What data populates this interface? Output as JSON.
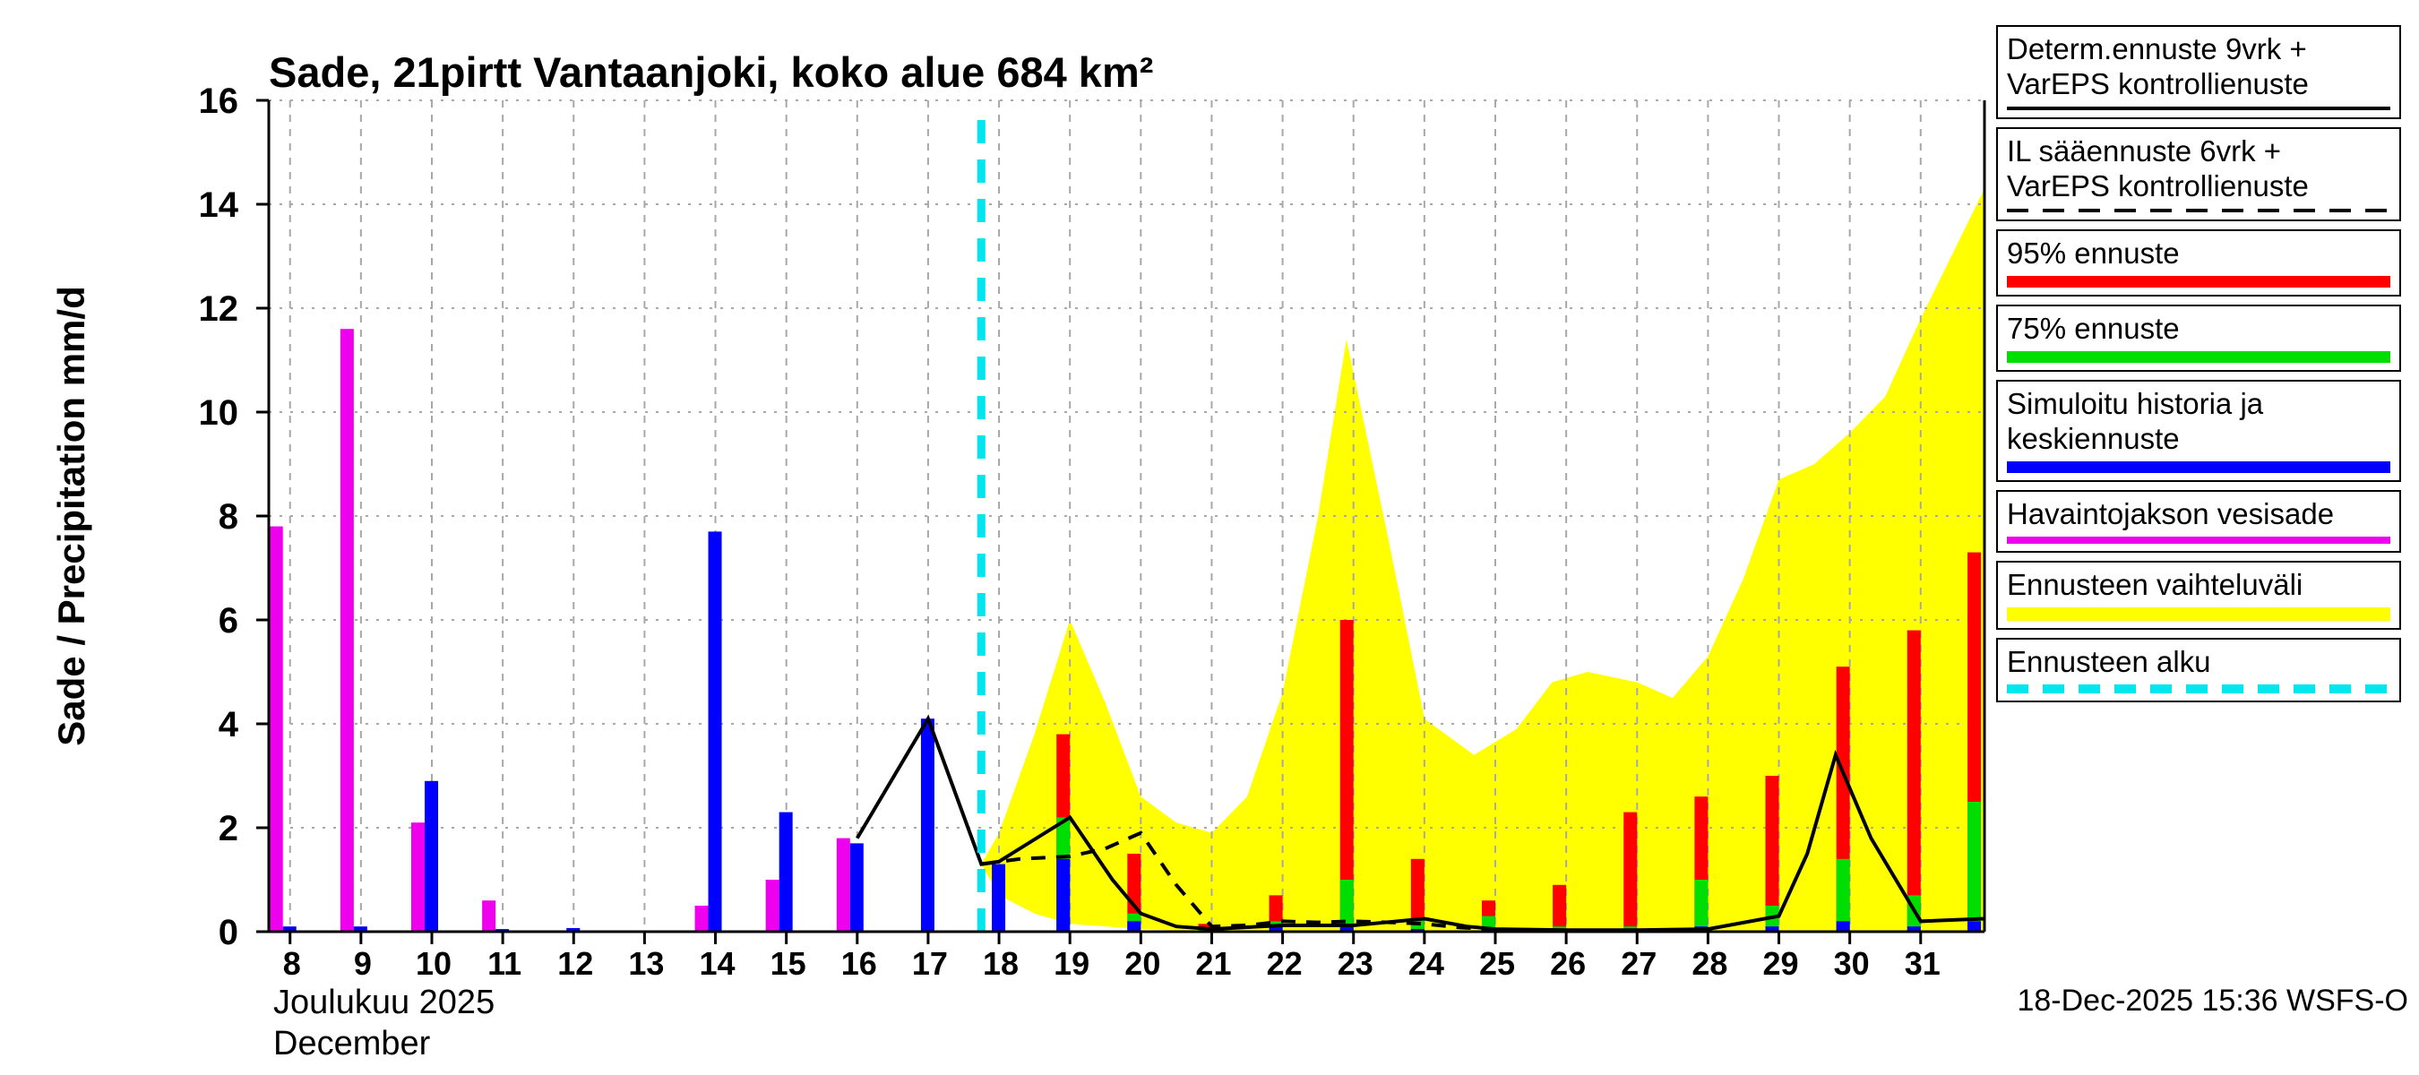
{
  "title": "Sade, 21pirtt Vantaanjoki, koko alue 684 km²",
  "footer": {
    "timestamp": "18-Dec-2025 15:36 WSFS-O"
  },
  "y_axis": {
    "label": "Sade / Precipitation  mm/d"
  },
  "x_axis": {
    "caption_fi": "Joulukuu 2025",
    "caption_en": "December"
  },
  "legend": {
    "items": [
      {
        "name": "determ-forecast",
        "lines": [
          "Determ.ennuste 9vrk +",
          "VarEPS kontrollienuste"
        ],
        "sample": {
          "color": "#000000",
          "thickness": 4,
          "dash": false
        }
      },
      {
        "name": "il-forecast",
        "lines": [
          "IL sääennuste 6vrk  +",
          "VarEPS kontrollienuste"
        ],
        "sample": {
          "color": "#000000",
          "thickness": 4,
          "dash": true
        }
      },
      {
        "name": "p95-forecast",
        "lines": [
          "95% ennuste"
        ],
        "sample": {
          "color": "#ff0000",
          "thickness": 13,
          "dash": false
        }
      },
      {
        "name": "p75-forecast",
        "lines": [
          "75% ennuste"
        ],
        "sample": {
          "color": "#00dd00",
          "thickness": 13,
          "dash": false
        }
      },
      {
        "name": "simulated-history",
        "lines": [
          "Simuloitu historia ja",
          "keskiennuste"
        ],
        "sample": {
          "color": "#0000ff",
          "thickness": 13,
          "dash": false
        }
      },
      {
        "name": "observed-precipitation",
        "lines": [
          "Havaintojakson vesisade"
        ],
        "sample": {
          "color": "#ee00ee",
          "thickness": 8,
          "dash": false
        }
      },
      {
        "name": "forecast-range",
        "lines": [
          "Ennusteen vaihteluväli"
        ],
        "sample": {
          "color": "#ffff00",
          "thickness": 15,
          "dash": false
        }
      },
      {
        "name": "forecast-start",
        "lines": [
          "Ennusteen alku"
        ],
        "sample": {
          "color": "#00e5ee",
          "thickness": 10,
          "dash": true
        }
      }
    ]
  },
  "chart_data": {
    "type": "bar+line+area",
    "title": "Sade, 21pirtt Vantaanjoki, koko alue 684 km²",
    "xlabel": "Joulukuu 2025 / December",
    "ylabel": "Sade / Precipitation mm/d",
    "x_range": [
      7.7,
      31.9
    ],
    "y_range": [
      0,
      16
    ],
    "x_ticks": [
      8,
      9,
      10,
      11,
      12,
      13,
      14,
      15,
      16,
      17,
      18,
      19,
      20,
      21,
      22,
      23,
      24,
      25,
      26,
      27,
      28,
      29,
      30,
      31
    ],
    "y_ticks": [
      0,
      2,
      4,
      6,
      8,
      10,
      12,
      14,
      16
    ],
    "forecast_start_day": 17.75,
    "colors": {
      "observed": "#ee00ee",
      "simulated": "#0000ff",
      "p95": "#ff0000",
      "p75": "#00dd00",
      "p50": "#0000ff",
      "range": "#ffff00",
      "start": "#00e5ee",
      "grid": "#a8a8a8",
      "axis": "#000000",
      "determ": "#000000",
      "il": "#000000"
    },
    "observed_bars": {
      "days": [
        8,
        9,
        10,
        11,
        12,
        13,
        14,
        15,
        16,
        17,
        18
      ],
      "observed": [
        7.8,
        11.6,
        2.1,
        0.6,
        0,
        0,
        0.5,
        1.0,
        1.8,
        0,
        0
      ],
      "simulated": [
        0.1,
        0.1,
        2.9,
        0.05,
        0.07,
        0,
        7.7,
        2.3,
        1.7,
        4.1,
        1.3
      ]
    },
    "forecast_bars": {
      "days": [
        19,
        20,
        21,
        22,
        23,
        24,
        25,
        26,
        27,
        28,
        29,
        30,
        31,
        31.85
      ],
      "p95": [
        3.8,
        1.5,
        0.15,
        0.7,
        6.0,
        1.4,
        0.6,
        0.9,
        2.3,
        2.6,
        3.0,
        5.1,
        5.8,
        7.3
      ],
      "p75": [
        2.2,
        0.35,
        0.05,
        0.2,
        1.0,
        0.25,
        0.3,
        0.1,
        0.1,
        1.0,
        0.5,
        1.4,
        0.7,
        2.5
      ],
      "p50": [
        1.4,
        0.2,
        0,
        0.1,
        0.15,
        0.05,
        0.05,
        0,
        0.05,
        0.1,
        0.1,
        0.2,
        0.1,
        0.2
      ]
    },
    "range_area": {
      "upper": [
        [
          17.75,
          1.3
        ],
        [
          18,
          1.9
        ],
        [
          18.5,
          3.8
        ],
        [
          19,
          6.0
        ],
        [
          19.5,
          4.4
        ],
        [
          20,
          2.6
        ],
        [
          20.5,
          2.1
        ],
        [
          21,
          1.9
        ],
        [
          21.5,
          2.6
        ],
        [
          22,
          4.6
        ],
        [
          22.5,
          8.0
        ],
        [
          22.9,
          11.4
        ],
        [
          23.5,
          7.5
        ],
        [
          24,
          4.1
        ],
        [
          24.7,
          3.4
        ],
        [
          25.3,
          3.9
        ],
        [
          25.8,
          4.8
        ],
        [
          26.3,
          5.0
        ],
        [
          27,
          4.8
        ],
        [
          27.5,
          4.5
        ],
        [
          28,
          5.3
        ],
        [
          28.5,
          6.8
        ],
        [
          29,
          8.7
        ],
        [
          29.5,
          9.0
        ],
        [
          30,
          9.6
        ],
        [
          30.5,
          10.3
        ],
        [
          31,
          11.8
        ],
        [
          31.9,
          14.3
        ]
      ],
      "lower": [
        [
          17.75,
          1.3
        ],
        [
          18,
          0.7
        ],
        [
          18.5,
          0.35
        ],
        [
          19,
          0.15
        ],
        [
          20,
          0.05
        ],
        [
          21,
          0
        ],
        [
          31.9,
          0
        ]
      ]
    },
    "determ_line": [
      [
        16,
        1.8
      ],
      [
        17,
        4.1
      ],
      [
        17.75,
        1.3
      ],
      [
        18,
        1.35
      ],
      [
        19,
        2.2
      ],
      [
        19.6,
        1.0
      ],
      [
        20,
        0.35
      ],
      [
        20.5,
        0.1
      ],
      [
        21,
        0.05
      ],
      [
        22,
        0.12
      ],
      [
        23,
        0.12
      ],
      [
        24,
        0.25
      ],
      [
        24.6,
        0.1
      ],
      [
        25,
        0.05
      ],
      [
        26,
        0.03
      ],
      [
        27,
        0.03
      ],
      [
        28,
        0.05
      ],
      [
        29,
        0.3
      ],
      [
        29.4,
        1.5
      ],
      [
        29.8,
        3.4
      ],
      [
        30.3,
        1.8
      ],
      [
        31,
        0.2
      ],
      [
        31.9,
        0.25
      ]
    ],
    "il_line": [
      [
        17.75,
        1.3
      ],
      [
        18.3,
        1.4
      ],
      [
        19,
        1.45
      ],
      [
        19.5,
        1.6
      ],
      [
        20,
        1.9
      ],
      [
        20.5,
        0.9
      ],
      [
        21,
        0.1
      ],
      [
        21.5,
        0.12
      ],
      [
        22,
        0.2
      ],
      [
        22.5,
        0.18
      ],
      [
        23,
        0.2
      ],
      [
        23.5,
        0.18
      ],
      [
        24,
        0.15
      ],
      [
        24.5,
        0.08
      ],
      [
        24.9,
        0.05
      ]
    ]
  }
}
